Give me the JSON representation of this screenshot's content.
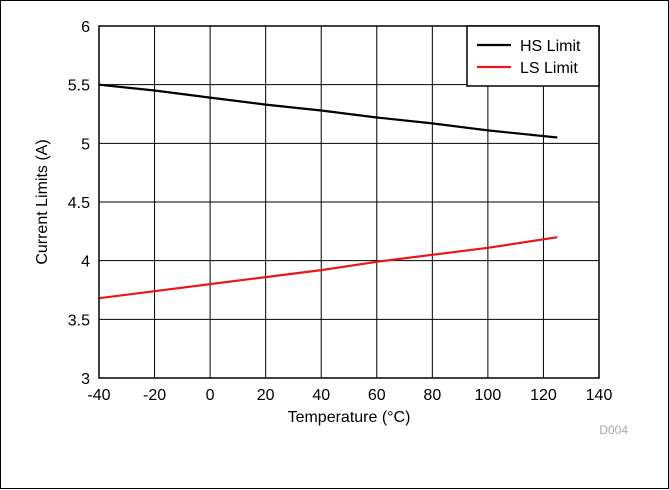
{
  "chart_data": {
    "type": "line",
    "title": "",
    "xlabel": "Temperature (°C)",
    "ylabel": "Current Limits (A)",
    "xlim": [
      -40,
      140
    ],
    "ylim": [
      3,
      6
    ],
    "xticks": [
      -40,
      -20,
      0,
      20,
      40,
      60,
      80,
      100,
      120,
      140
    ],
    "yticks": [
      3,
      3.5,
      4,
      4.5,
      5,
      5.5,
      6
    ],
    "xtick_labels": [
      "-40",
      "-20",
      "0",
      "20",
      "40",
      "60",
      "80",
      "100",
      "120",
      "140"
    ],
    "ytick_labels": [
      "3",
      "3.5",
      "4",
      "4.5",
      "5",
      "5.5",
      "6"
    ],
    "grid": true,
    "legend_position": "top-right",
    "series": [
      {
        "name": "HS Limit",
        "color": "#000000",
        "x": [
          -40,
          -20,
          0,
          20,
          40,
          60,
          80,
          100,
          125
        ],
        "y": [
          5.5,
          5.45,
          5.39,
          5.33,
          5.28,
          5.22,
          5.17,
          5.11,
          5.05
        ]
      },
      {
        "name": "LS Limit",
        "color": "#e8171b",
        "x": [
          -40,
          -20,
          0,
          20,
          40,
          60,
          80,
          100,
          125
        ],
        "y": [
          3.68,
          3.74,
          3.8,
          3.86,
          3.92,
          3.99,
          4.05,
          4.11,
          4.2
        ]
      }
    ],
    "figure_id": "D004"
  }
}
